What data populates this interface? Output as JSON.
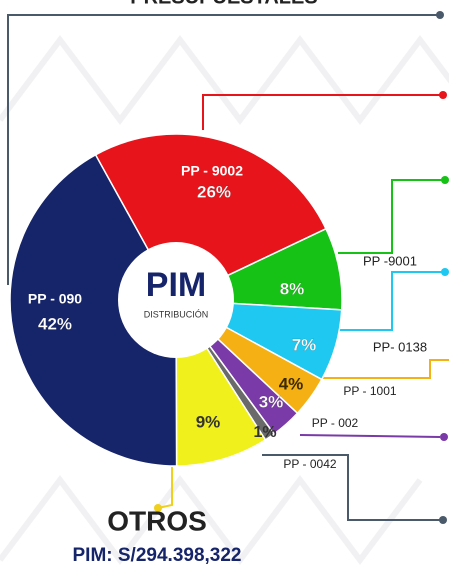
{
  "chart_data": {
    "type": "donut",
    "title": "PRESUPUESTALES",
    "center_title": "PIM",
    "center_subtitle": "DISTRIBUCIÓN",
    "categories": [
      "PP - 9002",
      "PP -9001",
      "PP- 0138",
      "PP - 1001",
      "PP - 002",
      "PP - 0042",
      "OTROS",
      "PP - 090"
    ],
    "values": [
      26,
      8,
      7,
      4,
      3,
      1,
      9,
      42
    ],
    "value_labels": [
      "26%",
      "8%",
      "7%",
      "4%",
      "3%",
      "1%",
      "9%",
      "42%"
    ],
    "colors": [
      "#e8141c",
      "#16c216",
      "#1ec8f0",
      "#f5b013",
      "#7a3aa8",
      "#6a6a6a",
      "#f0f01c",
      "#16246a"
    ],
    "total_label": "PIM: S/294.398,322"
  }
}
